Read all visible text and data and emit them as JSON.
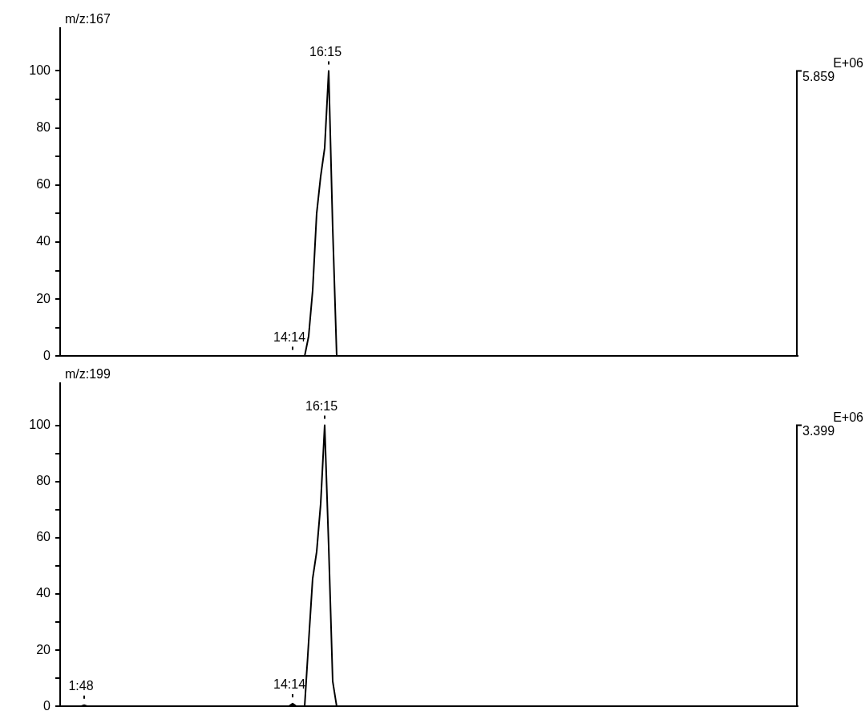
{
  "chart_data": [
    {
      "type": "line",
      "title": "m/z:167",
      "categories": [
        null,
        null,
        null,
        null,
        null,
        null,
        null,
        null,
        null,
        null,
        null,
        null,
        null,
        null,
        null,
        null,
        null,
        null,
        null,
        null,
        null,
        null,
        null,
        null,
        null,
        null,
        null,
        null,
        null,
        null,
        null,
        null,
        null,
        null,
        null,
        null,
        null,
        null,
        null,
        null,
        null,
        null,
        null,
        null,
        null,
        null,
        null,
        null,
        null,
        null,
        null,
        null,
        null,
        null,
        null,
        null,
        null,
        null,
        null,
        null,
        null,
        null,
        null,
        null,
        null,
        null,
        null,
        null,
        null,
        null,
        null,
        null,
        null,
        null,
        null,
        null,
        null,
        null,
        null,
        null,
        null,
        null,
        null,
        null,
        null,
        null,
        null,
        null,
        null,
        null,
        null,
        null,
        null,
        null,
        null,
        null,
        null,
        null,
        null,
        null,
        null,
        null,
        null,
        null,
        null,
        null,
        null,
        null,
        null,
        null,
        null,
        null,
        null,
        null,
        null,
        null,
        null,
        null,
        null,
        null,
        null,
        null,
        null,
        null,
        null,
        null,
        null,
        null,
        null,
        null,
        null,
        null,
        null,
        null,
        null,
        null,
        null,
        null,
        null,
        null,
        null,
        null,
        null,
        null,
        null,
        null,
        null,
        null,
        null,
        null,
        null,
        null,
        null,
        null,
        null,
        null,
        null,
        null,
        null,
        null,
        null,
        null,
        null,
        null,
        null,
        null,
        null,
        null,
        null,
        null,
        null,
        null,
        null,
        null,
        null,
        null,
        null,
        null,
        null,
        null,
        null,
        null,
        null,
        null,
        null
      ],
      "series": [
        {
          "color": "#000000",
          "values": [
            0,
            0,
            0,
            0,
            0,
            0,
            0,
            0,
            0,
            0,
            0,
            0,
            0,
            0,
            0,
            0,
            0,
            0,
            0,
            0,
            0,
            0,
            0,
            0,
            0,
            0,
            0,
            0,
            0,
            0,
            0,
            0,
            0,
            0,
            0,
            0,
            0,
            0,
            0,
            0,
            0,
            0,
            0,
            0,
            0,
            0,
            0,
            0,
            0,
            0,
            0,
            0,
            0,
            0,
            0,
            0,
            0,
            0,
            0,
            0,
            0,
            0,
            7,
            23,
            50,
            63,
            73,
            100,
            45,
            0,
            0,
            0,
            0,
            0,
            0,
            0,
            0,
            0,
            0,
            0,
            0,
            0,
            0,
            0,
            0,
            0,
            0,
            0,
            0,
            0,
            0,
            0,
            0,
            0,
            0,
            0,
            0,
            0,
            0,
            0,
            0,
            0,
            0,
            0,
            0,
            0,
            0,
            0,
            0,
            0,
            0,
            0,
            0,
            0,
            0,
            0,
            0,
            0,
            0,
            0,
            0,
            0,
            0,
            0,
            0,
            0,
            0,
            0,
            0,
            0,
            0,
            0,
            0,
            0,
            0,
            0,
            0,
            0,
            0,
            0,
            0,
            0,
            0,
            0,
            0,
            0,
            0,
            0,
            0,
            0,
            0,
            0,
            0,
            0,
            0,
            0,
            0,
            0,
            0,
            0,
            0,
            0,
            0,
            0,
            0,
            0,
            0,
            0,
            0,
            0,
            0,
            0,
            0,
            0,
            0,
            0,
            0,
            0,
            0,
            0,
            0,
            0,
            0,
            0,
            0
          ]
        }
      ],
      "ylim": [
        0,
        115
      ],
      "yticks": [
        0,
        {
          "value": 10,
          "label": null
        },
        20,
        {
          "value": 30,
          "label": null
        },
        40,
        {
          "value": 50,
          "label": null
        },
        60,
        {
          "value": 70,
          "label": null
        },
        80,
        {
          "value": 90,
          "label": null
        },
        100
      ],
      "tick_labels": "y",
      "grid": false,
      "legend": false,
      "marker": "none",
      "line_style": "solid",
      "annotations": [
        {
          "text": "16:15",
          "y": 100
        },
        {
          "text": "14:14",
          "y": 0
        },
        "E+06",
        "5.859"
      ]
    },
    {
      "type": "line",
      "title": "m/z:199",
      "categories": [
        null,
        null,
        null,
        null,
        null,
        null,
        null,
        null,
        null,
        null,
        null,
        null,
        null,
        null,
        null,
        null,
        null,
        null,
        null,
        null,
        null,
        null,
        null,
        null,
        null,
        null,
        null,
        null,
        null,
        null,
        null,
        null,
        null,
        null,
        null,
        null,
        null,
        null,
        null,
        null,
        null,
        null,
        null,
        null,
        null,
        null,
        null,
        null,
        null,
        null,
        null,
        null,
        null,
        null,
        null,
        null,
        null,
        null,
        null,
        null,
        null,
        null,
        null,
        null,
        null,
        null,
        null,
        null,
        null,
        null,
        null,
        null,
        null,
        null,
        null,
        null,
        null,
        null,
        null,
        null,
        null,
        null,
        null,
        null,
        null,
        null,
        null,
        null,
        null,
        null,
        null,
        null,
        null,
        null,
        null,
        null,
        null,
        null,
        null,
        null,
        null,
        null,
        null,
        null,
        null,
        null,
        null,
        null,
        null,
        null,
        null,
        null,
        null,
        null,
        null,
        null,
        null,
        null,
        null,
        null,
        null,
        null,
        null,
        null,
        null,
        null,
        null,
        null,
        null,
        null,
        null,
        null,
        null,
        null,
        null,
        null,
        null,
        null,
        null,
        null,
        null,
        null,
        null,
        null,
        null,
        null,
        null,
        null,
        null,
        null,
        null,
        null,
        null,
        null,
        null,
        null,
        null,
        null,
        null,
        null,
        null,
        null,
        null,
        null,
        null,
        null,
        null,
        null,
        null,
        null,
        null,
        null,
        null,
        null,
        null,
        null,
        null,
        null,
        null,
        null,
        null,
        null,
        null,
        null,
        null
      ],
      "series": [
        {
          "color": "#000000",
          "values": [
            0,
            0,
            0,
            0,
            0,
            0,
            0.5,
            0,
            0,
            0,
            0,
            0,
            0,
            0,
            0,
            0,
            0,
            0,
            0,
            0,
            0,
            0,
            0,
            0,
            0,
            0,
            0,
            0,
            0,
            0,
            0,
            0,
            0,
            0,
            0,
            0,
            0,
            0,
            0,
            0,
            0,
            0,
            0,
            0,
            0,
            0,
            0,
            0,
            0,
            0,
            0,
            0,
            0,
            0,
            0,
            0,
            0,
            0,
            1,
            0,
            0,
            0,
            23,
            45.5,
            55,
            72,
            100,
            57,
            9,
            0,
            0,
            0,
            0,
            0,
            0,
            0,
            0,
            0,
            0,
            0,
            0,
            0,
            0,
            0,
            0,
            0,
            0,
            0,
            0,
            0,
            0,
            0,
            0,
            0,
            0,
            0,
            0,
            0,
            0,
            0,
            0,
            0,
            0,
            0,
            0,
            0,
            0,
            0,
            0,
            0,
            0,
            0,
            0,
            0,
            0,
            0,
            0,
            0,
            0,
            0,
            0,
            0,
            0,
            0,
            0,
            0,
            0,
            0,
            0,
            0,
            0,
            0,
            0,
            0,
            0,
            0,
            0,
            0,
            0,
            0,
            0,
            0,
            0,
            0,
            0,
            0,
            0,
            0,
            0,
            0,
            0,
            0,
            0,
            0,
            0,
            0,
            0,
            0,
            0,
            0,
            0,
            0,
            0,
            0,
            0,
            0,
            0,
            0,
            0,
            0,
            0,
            0,
            0,
            0,
            0,
            0,
            0,
            0,
            0,
            0,
            0,
            0,
            0,
            0,
            0
          ]
        }
      ],
      "ylim": [
        0,
        115
      ],
      "yticks": [
        0,
        {
          "value": 10,
          "label": null
        },
        20,
        {
          "value": 30,
          "label": null
        },
        40,
        {
          "value": 50,
          "label": null
        },
        60,
        {
          "value": 70,
          "label": null
        },
        80,
        {
          "value": 90,
          "label": null
        },
        100
      ],
      "tick_labels": "y",
      "grid": false,
      "legend": false,
      "marker": "none",
      "line_style": "solid",
      "annotations": [
        {
          "text": "16:15",
          "y": 100
        },
        {
          "text": "14:14",
          "y": 1
        },
        {
          "text": "1:48",
          "y": 0.5
        },
        "E+06",
        "3.399"
      ]
    }
  ]
}
